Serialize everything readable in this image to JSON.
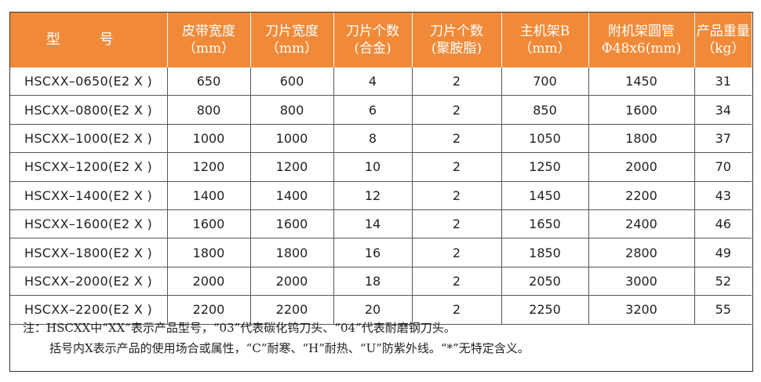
{
  "header": {
    "model": "型 号",
    "belt_width": [
      "皮带宽度",
      "（mm）"
    ],
    "blade_width": [
      "刀片宽度",
      "（mm）"
    ],
    "blade_count_alloy": [
      "刀片个数",
      "(合金)"
    ],
    "blade_count_pu": [
      "刀片个数",
      "(聚胺脂)"
    ],
    "main_frame": [
      "主机架B",
      "（mm）"
    ],
    "aux_frame": [
      "附机架圆管",
      "Φ48x6(mm)"
    ],
    "weight": [
      "产品重量",
      "（kg）"
    ]
  },
  "rows": [
    [
      "HSCXX–0650(E2 X )",
      "650",
      "600",
      "4",
      "2",
      "700",
      "1450",
      "31"
    ],
    [
      "HSCXX–0800(E2 X )",
      "800",
      "800",
      "6",
      "2",
      "850",
      "1600",
      "34"
    ],
    [
      "HSCXX–1000(E2 X )",
      "1000",
      "1000",
      "8",
      "2",
      "1050",
      "1800",
      "37"
    ],
    [
      "HSCXX–1200(E2 X )",
      "1200",
      "1200",
      "10",
      "2",
      "1250",
      "2000",
      "70"
    ],
    [
      "HSCXX–1400(E2 X )",
      "1400",
      "1400",
      "12",
      "2",
      "1450",
      "2200",
      "43"
    ],
    [
      "HSCXX–1600(E2 X )",
      "1600",
      "1600",
      "14",
      "2",
      "1650",
      "2400",
      "46"
    ],
    [
      "HSCXX–1800(E2 X )",
      "1800",
      "1800",
      "16",
      "2",
      "1850",
      "2800",
      "49"
    ],
    [
      "HSCXX–2000(E2 X )",
      "2000",
      "2000",
      "18",
      "2",
      "2050",
      "3000",
      "52"
    ],
    [
      "HSCXX–2200(E2 X )",
      "2200",
      "2200",
      "20",
      "2",
      "2250",
      "3200",
      "55"
    ]
  ],
  "note": {
    "line1": "注：HSCXX中“XX”表示产品型号，“03”代表碳化钨刀头、“04”代表耐磨钢刀头。",
    "line2": "括号内X表示产品的使用场合或属性，“C”耐寒、“H”耐热、“U”防紫外线。“*”无特定含义。"
  },
  "colors": {
    "header_bg": "#f08a38",
    "header_text": "#ffffff",
    "border": "#333333"
  }
}
